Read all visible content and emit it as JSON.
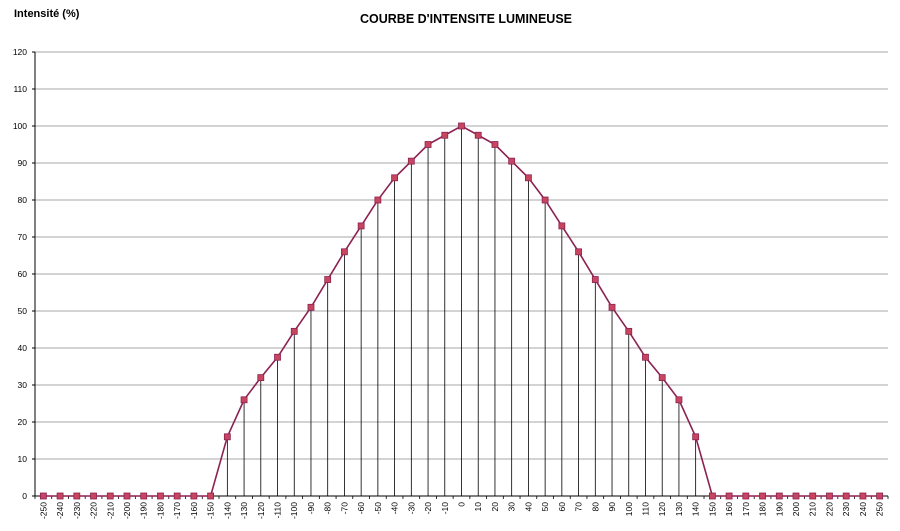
{
  "chart_data": {
    "type": "line",
    "title": "COURBE D'INTENSITE LUMINEUSE",
    "ylabel": "Intensité (%)",
    "xlabel": "",
    "ylim": [
      0,
      120
    ],
    "y_ticks": [
      0,
      10,
      20,
      30,
      40,
      50,
      60,
      70,
      80,
      90,
      100,
      110,
      120
    ],
    "grid": "horizontal",
    "drop_lines": true,
    "legend": "none",
    "line_color": "#8b2252",
    "marker_color": "#c8455f",
    "marker": "square",
    "x": [
      -250,
      -240,
      -230,
      -220,
      -210,
      -200,
      -190,
      -180,
      -170,
      -160,
      -150,
      -140,
      -130,
      -120,
      -110,
      -100,
      -90,
      -80,
      -70,
      -60,
      -50,
      -40,
      -30,
      -20,
      -10,
      0,
      10,
      20,
      30,
      40,
      50,
      60,
      70,
      80,
      90,
      100,
      110,
      120,
      130,
      140,
      150,
      160,
      170,
      180,
      190,
      200,
      210,
      220,
      230,
      240,
      250
    ],
    "series": [
      {
        "values": [
          0,
          0,
          0,
          0,
          0,
          0,
          0,
          0,
          0,
          0,
          0,
          16,
          26,
          32,
          37.5,
          44.5,
          51,
          58.5,
          66,
          73,
          80,
          86,
          90.5,
          95,
          97.5,
          100,
          97.5,
          95,
          90.5,
          86,
          80,
          73,
          66,
          58.5,
          51,
          44.5,
          37.5,
          32,
          26,
          16,
          0,
          0,
          0,
          0,
          0,
          0,
          0,
          0,
          0,
          0,
          0
        ]
      }
    ]
  }
}
